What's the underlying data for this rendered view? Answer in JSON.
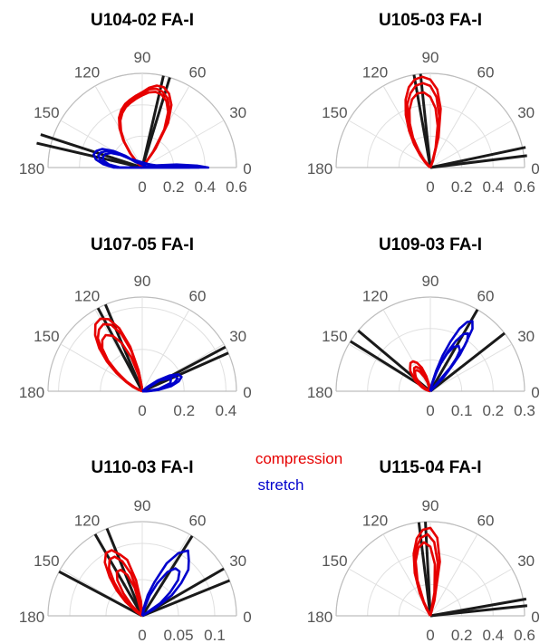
{
  "legend": {
    "compression": {
      "label": "compression",
      "color": "#e60000"
    },
    "stretch": {
      "label": "stretch",
      "color": "#0000cc"
    }
  },
  "chart_data": [
    {
      "type": "polar",
      "title": "U104-02 FA-I",
      "angle_ticks": [
        "180",
        "150",
        "120",
        "90",
        "60",
        "30",
        "0"
      ],
      "r_ticks": [
        "0",
        "0.2",
        "0.4",
        "0.6"
      ],
      "rmax": 0.6,
      "compression": [
        {
          "theta": [
            55,
            60,
            65,
            70,
            75,
            80,
            85,
            90,
            95,
            100,
            105,
            110,
            115,
            120,
            125,
            130,
            135
          ],
          "r": [
            0.15,
            0.33,
            0.44,
            0.5,
            0.53,
            0.53,
            0.51,
            0.48,
            0.46,
            0.44,
            0.42,
            0.39,
            0.35,
            0.29,
            0.21,
            0.12,
            0.05
          ]
        },
        {
          "theta": [
            55,
            60,
            65,
            70,
            75,
            80,
            85,
            90,
            95,
            100,
            105,
            110,
            115,
            120,
            125,
            130,
            135
          ],
          "r": [
            0.13,
            0.3,
            0.41,
            0.47,
            0.5,
            0.51,
            0.5,
            0.47,
            0.45,
            0.43,
            0.41,
            0.38,
            0.34,
            0.28,
            0.2,
            0.12,
            0.05
          ]
        },
        {
          "theta": [
            55,
            60,
            65,
            70,
            75,
            80,
            85,
            90,
            95,
            100,
            105,
            110,
            115,
            120,
            125,
            130,
            135
          ],
          "r": [
            0.12,
            0.28,
            0.39,
            0.45,
            0.48,
            0.49,
            0.48,
            0.46,
            0.44,
            0.42,
            0.4,
            0.37,
            0.33,
            0.27,
            0.2,
            0.11,
            0.04
          ]
        }
      ],
      "stretch": [
        {
          "theta": [
            0,
            2,
            5,
            8,
            12,
            140,
            145,
            150,
            155,
            160,
            165,
            170,
            175,
            180
          ],
          "r": [
            0.42,
            0.35,
            0.22,
            0.1,
            0.03,
            0.06,
            0.13,
            0.21,
            0.28,
            0.31,
            0.32,
            0.3,
            0.25,
            0.18
          ]
        },
        {
          "theta": [
            0,
            3,
            7,
            140,
            145,
            150,
            155,
            160,
            165,
            170,
            175,
            180
          ],
          "r": [
            0.36,
            0.25,
            0.1,
            0.05,
            0.12,
            0.19,
            0.25,
            0.28,
            0.29,
            0.27,
            0.23,
            0.16
          ]
        },
        {
          "theta": [
            0,
            3,
            7,
            145,
            150,
            155,
            160,
            165,
            170,
            175,
            180
          ],
          "r": [
            0.3,
            0.2,
            0.08,
            0.1,
            0.16,
            0.22,
            0.25,
            0.26,
            0.25,
            0.21,
            0.14
          ]
        }
      ],
      "lines": [
        {
          "theta": 73,
          "r": 0.6
        },
        {
          "theta": 77,
          "r": 0.6
        },
        {
          "theta": 162,
          "r": 0.68
        },
        {
          "theta": 167,
          "r": 0.7
        }
      ]
    },
    {
      "type": "polar",
      "title": "U105-03 FA-I",
      "angle_ticks": [
        "180",
        "150",
        "120",
        "90",
        "60",
        "30",
        "0"
      ],
      "r_ticks": [
        "0",
        "0.2",
        "0.4",
        "0.6"
      ],
      "rmax": 0.6,
      "compression": [
        {
          "theta": [
            70,
            75,
            80,
            85,
            90,
            95,
            100,
            105,
            110,
            115,
            120,
            125,
            130,
            135,
            140
          ],
          "r": [
            0.05,
            0.2,
            0.38,
            0.5,
            0.56,
            0.58,
            0.57,
            0.53,
            0.46,
            0.37,
            0.27,
            0.18,
            0.1,
            0.05,
            0.02
          ]
        },
        {
          "theta": [
            70,
            75,
            80,
            85,
            90,
            95,
            100,
            105,
            110,
            115,
            120,
            125,
            130,
            135
          ],
          "r": [
            0.04,
            0.17,
            0.33,
            0.45,
            0.52,
            0.54,
            0.53,
            0.49,
            0.43,
            0.34,
            0.25,
            0.16,
            0.08,
            0.03
          ]
        },
        {
          "theta": [
            70,
            75,
            80,
            85,
            90,
            95,
            100,
            105,
            110,
            115,
            120,
            125,
            130
          ],
          "r": [
            0.03,
            0.13,
            0.27,
            0.38,
            0.45,
            0.48,
            0.48,
            0.45,
            0.39,
            0.31,
            0.22,
            0.13,
            0.06
          ]
        }
      ],
      "stretch": [],
      "lines": [
        {
          "theta": 96,
          "r": 0.6
        },
        {
          "theta": 100,
          "r": 0.6
        },
        {
          "theta": 7,
          "r": 0.62
        },
        {
          "theta": 12,
          "r": 0.62
        }
      ]
    },
    {
      "type": "polar",
      "title": "U107-05 FA-I",
      "angle_ticks": [
        "180",
        "150",
        "120",
        "90",
        "60",
        "30",
        "0"
      ],
      "r_ticks": [
        "0",
        "0.2",
        "0.4"
      ],
      "rmax": 0.45,
      "compression": [
        {
          "theta": [
            95,
            100,
            105,
            110,
            115,
            120,
            125,
            130,
            135,
            140,
            145,
            150,
            155,
            160
          ],
          "r": [
            0.02,
            0.1,
            0.22,
            0.32,
            0.38,
            0.4,
            0.39,
            0.35,
            0.29,
            0.22,
            0.15,
            0.09,
            0.05,
            0.02
          ]
        },
        {
          "theta": [
            95,
            100,
            105,
            110,
            115,
            120,
            125,
            130,
            135,
            140,
            145,
            150,
            155
          ],
          "r": [
            0.02,
            0.09,
            0.2,
            0.29,
            0.35,
            0.37,
            0.36,
            0.33,
            0.27,
            0.2,
            0.13,
            0.08,
            0.03
          ]
        },
        {
          "theta": [
            98,
            103,
            108,
            113,
            118,
            123,
            128,
            133,
            138,
            143,
            148,
            153
          ],
          "r": [
            0.02,
            0.08,
            0.17,
            0.25,
            0.3,
            0.32,
            0.31,
            0.28,
            0.22,
            0.15,
            0.09,
            0.04
          ]
        }
      ],
      "stretch": [
        {
          "theta": [
            0,
            5,
            10,
            15,
            20,
            25,
            30,
            35,
            40
          ],
          "r": [
            0.03,
            0.08,
            0.14,
            0.18,
            0.2,
            0.19,
            0.15,
            0.09,
            0.03
          ]
        },
        {
          "theta": [
            0,
            5,
            10,
            15,
            20,
            25,
            30,
            35
          ],
          "r": [
            0.02,
            0.07,
            0.12,
            0.16,
            0.18,
            0.17,
            0.13,
            0.07
          ]
        },
        {
          "theta": [
            0,
            8,
            16,
            24,
            32
          ],
          "r": [
            0.02,
            0.08,
            0.14,
            0.15,
            0.1
          ]
        }
      ],
      "lines": [
        {
          "theta": 113,
          "r": 0.45
        },
        {
          "theta": 118,
          "r": 0.45
        },
        {
          "theta": 24,
          "r": 0.45
        },
        {
          "theta": 28,
          "r": 0.45
        }
      ]
    },
    {
      "type": "polar",
      "title": "U109-03 FA-I",
      "angle_ticks": [
        "180",
        "150",
        "120",
        "90",
        "60",
        "30",
        "0"
      ],
      "r_ticks": [
        "0",
        "0.1",
        "0.2",
        "0.3"
      ],
      "rmax": 0.3,
      "compression": [
        {
          "theta": [
            100,
            105,
            110,
            115,
            120,
            125,
            130,
            135,
            140,
            145,
            150,
            155,
            160,
            165
          ],
          "r": [
            0.02,
            0.05,
            0.08,
            0.1,
            0.11,
            0.11,
            0.1,
            0.09,
            0.07,
            0.06,
            0.04,
            0.03,
            0.02,
            0.01
          ]
        },
        {
          "theta": [
            105,
            110,
            115,
            120,
            125,
            130,
            135,
            140,
            145,
            150,
            155
          ],
          "r": [
            0.03,
            0.06,
            0.08,
            0.09,
            0.09,
            0.08,
            0.07,
            0.05,
            0.04,
            0.03,
            0.02
          ]
        },
        {
          "theta": [
            108,
            113,
            118,
            123,
            128,
            133,
            138,
            143,
            148
          ],
          "r": [
            0.03,
            0.05,
            0.07,
            0.08,
            0.08,
            0.07,
            0.06,
            0.04,
            0.02
          ]
        }
      ],
      "stretch": [
        {
          "theta": [
            50,
            53,
            56,
            59,
            62,
            65,
            68,
            71,
            74,
            77,
            80
          ],
          "r": [
            0.1,
            0.18,
            0.24,
            0.26,
            0.25,
            0.22,
            0.17,
            0.12,
            0.07,
            0.03,
            0.01
          ]
        },
        {
          "theta": [
            48,
            51,
            54,
            57,
            60,
            63,
            66,
            69,
            72,
            75,
            78
          ],
          "r": [
            0.08,
            0.15,
            0.2,
            0.22,
            0.21,
            0.18,
            0.14,
            0.1,
            0.06,
            0.03,
            0.01
          ]
        },
        {
          "theta": [
            46,
            50,
            54,
            58,
            62,
            66,
            70,
            74,
            78
          ],
          "r": [
            0.06,
            0.12,
            0.16,
            0.17,
            0.16,
            0.13,
            0.09,
            0.05,
            0.02
          ]
        }
      ],
      "lines": [
        {
          "theta": 140,
          "r": 0.3
        },
        {
          "theta": 148,
          "r": 0.3
        },
        {
          "theta": 38,
          "r": 0.3
        },
        {
          "theta": 60,
          "r": 0.3
        }
      ]
    },
    {
      "type": "polar",
      "title": "U110-03 FA-I",
      "angle_ticks": [
        "180",
        "150",
        "120",
        "90",
        "60",
        "30",
        "0"
      ],
      "r_ticks": [
        "0",
        "0.05",
        "0.1"
      ],
      "rmax": 0.13,
      "compression": [
        {
          "theta": [
            95,
            100,
            105,
            110,
            115,
            120,
            125,
            130,
            135,
            140,
            145
          ],
          "r": [
            0.02,
            0.05,
            0.08,
            0.09,
            0.1,
            0.1,
            0.09,
            0.07,
            0.05,
            0.03,
            0.01
          ]
        },
        {
          "theta": [
            100,
            105,
            110,
            115,
            120,
            125,
            130,
            135,
            140
          ],
          "r": [
            0.03,
            0.06,
            0.08,
            0.09,
            0.09,
            0.08,
            0.06,
            0.04,
            0.02
          ]
        },
        {
          "theta": [
            105,
            110,
            115,
            120,
            125,
            130,
            135
          ],
          "r": [
            0.04,
            0.06,
            0.07,
            0.07,
            0.06,
            0.04,
            0.02
          ]
        }
      ],
      "stretch": [
        {
          "theta": [
            30,
            35,
            40,
            45,
            50,
            55,
            60,
            65,
            70,
            75,
            80
          ],
          "r": [
            0.02,
            0.05,
            0.07,
            0.09,
            0.1,
            0.11,
            0.1,
            0.08,
            0.05,
            0.03,
            0.01
          ]
        },
        {
          "theta": [
            35,
            40,
            45,
            50,
            55,
            60,
            65,
            70,
            75
          ],
          "r": [
            0.03,
            0.05,
            0.07,
            0.08,
            0.08,
            0.07,
            0.05,
            0.03,
            0.01
          ]
        }
      ],
      "lines": [
        {
          "theta": 112,
          "r": 0.13
        },
        {
          "theta": 120,
          "r": 0.13
        },
        {
          "theta": 152,
          "r": 0.13
        },
        {
          "theta": 58,
          "r": 0.13
        },
        {
          "theta": 22,
          "r": 0.13
        },
        {
          "theta": 30,
          "r": 0.13
        }
      ]
    },
    {
      "type": "polar",
      "title": "U115-04 FA-I",
      "angle_ticks": [
        "180",
        "150",
        "120",
        "90",
        "60",
        "30",
        "0"
      ],
      "r_ticks": [
        "0",
        "0.2",
        "0.4",
        "0.6"
      ],
      "rmax": 0.6,
      "compression": [
        {
          "theta": [
            75,
            80,
            85,
            90,
            95,
            100,
            105,
            110,
            115,
            120
          ],
          "r": [
            0.1,
            0.35,
            0.5,
            0.56,
            0.55,
            0.5,
            0.41,
            0.29,
            0.16,
            0.05
          ]
        },
        {
          "theta": [
            77,
            82,
            87,
            92,
            97,
            102,
            107,
            112,
            117
          ],
          "r": [
            0.12,
            0.34,
            0.47,
            0.52,
            0.5,
            0.44,
            0.34,
            0.22,
            0.09
          ]
        },
        {
          "theta": [
            80,
            85,
            90,
            95,
            100,
            105,
            110,
            115
          ],
          "r": [
            0.15,
            0.33,
            0.44,
            0.47,
            0.44,
            0.36,
            0.24,
            0.1
          ]
        }
      ],
      "stretch": [],
      "lines": [
        {
          "theta": 93,
          "r": 0.6
        },
        {
          "theta": 97,
          "r": 0.6
        },
        {
          "theta": 6,
          "r": 0.62
        },
        {
          "theta": 10,
          "r": 0.62
        }
      ]
    }
  ]
}
